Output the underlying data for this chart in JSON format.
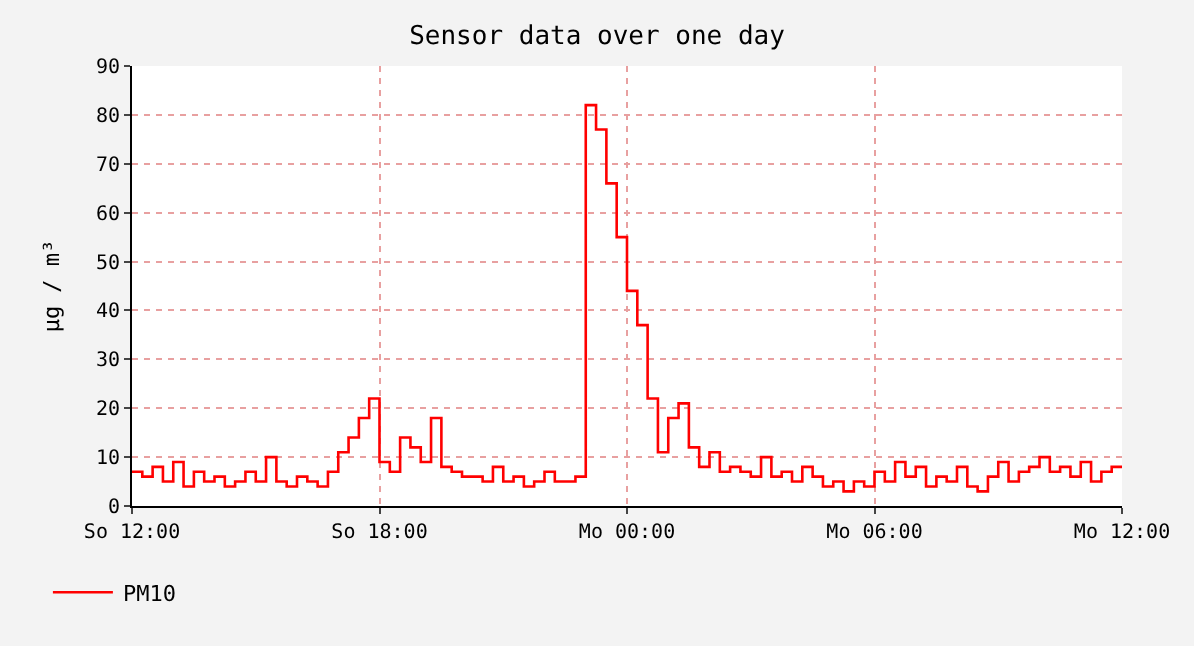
{
  "chart_data": {
    "type": "step",
    "title": "Sensor data over one day",
    "ylabel": "µg / m³",
    "categories": [
      "So 12:00",
      null,
      null,
      null,
      null,
      null,
      null,
      null,
      null,
      null,
      null,
      null,
      null,
      null,
      null,
      null,
      null,
      null,
      null,
      null,
      null,
      null,
      null,
      null,
      "So 18:00",
      null,
      null,
      null,
      null,
      null,
      null,
      null,
      null,
      null,
      null,
      null,
      null,
      null,
      null,
      null,
      null,
      null,
      null,
      null,
      null,
      null,
      null,
      null,
      "Mo 00:00",
      null,
      null,
      null,
      null,
      null,
      null,
      null,
      null,
      null,
      null,
      null,
      null,
      null,
      null,
      null,
      null,
      null,
      null,
      null,
      null,
      null,
      null,
      null,
      "Mo 06:00",
      null,
      null,
      null,
      null,
      null,
      null,
      null,
      null,
      null,
      null,
      null,
      null,
      null,
      null,
      null,
      null,
      null,
      null,
      null,
      null,
      null,
      null,
      null,
      "Mo 12:00"
    ],
    "series": [
      {
        "name": "PM10",
        "color": "#ff0000",
        "values": [
          7,
          6,
          8,
          5,
          9,
          4,
          7,
          5,
          6,
          4,
          5,
          7,
          5,
          10,
          5,
          4,
          6,
          5,
          4,
          7,
          11,
          14,
          18,
          22,
          9,
          7,
          14,
          12,
          9,
          18,
          8,
          7,
          6,
          6,
          5,
          8,
          5,
          6,
          4,
          5,
          7,
          5,
          5,
          6,
          82,
          77,
          66,
          55,
          44,
          37,
          22,
          11,
          18,
          21,
          12,
          8,
          11,
          7,
          8,
          7,
          6,
          10,
          6,
          7,
          5,
          8,
          6,
          4,
          5,
          3,
          5,
          4,
          7,
          5,
          9,
          6,
          8,
          4,
          6,
          5,
          8,
          4,
          3,
          6,
          9,
          5,
          7,
          8,
          10,
          7,
          8,
          6,
          9,
          5,
          7,
          8,
          8
        ]
      }
    ],
    "ylim": [
      0,
      90
    ],
    "yticks": [
      0,
      10,
      20,
      30,
      40,
      50,
      60,
      70,
      80,
      90
    ],
    "grid": true,
    "legend": "bottom left",
    "marker": "none",
    "line_style": "solid"
  }
}
